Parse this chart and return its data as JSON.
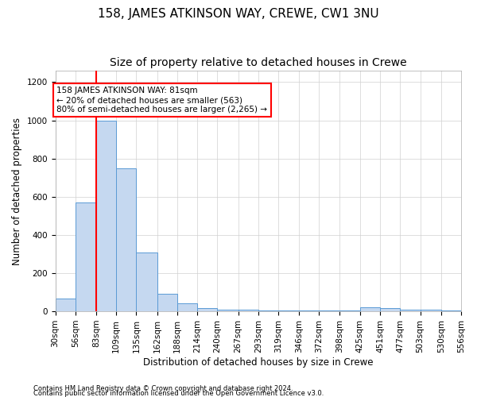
{
  "title": "158, JAMES ATKINSON WAY, CREWE, CW1 3NU",
  "subtitle": "Size of property relative to detached houses in Crewe",
  "xlabel": "Distribution of detached houses by size in Crewe",
  "ylabel": "Number of detached properties",
  "bin_edges": [
    30,
    56,
    83,
    109,
    135,
    162,
    188,
    214,
    240,
    267,
    293,
    319,
    346,
    372,
    398,
    425,
    451,
    477,
    503,
    530,
    556
  ],
  "bar_heights": [
    65,
    570,
    1000,
    750,
    310,
    90,
    40,
    15,
    10,
    8,
    6,
    5,
    4,
    3,
    3,
    20,
    15,
    10,
    8,
    6
  ],
  "bar_color": "#c5d8f0",
  "bar_edge_color": "#5b9bd5",
  "red_line_x": 83,
  "ylim": [
    0,
    1260
  ],
  "yticks": [
    0,
    200,
    400,
    600,
    800,
    1000,
    1200
  ],
  "annotation_title": "158 JAMES ATKINSON WAY: 81sqm",
  "annotation_line1": "← 20% of detached houses are smaller (563)",
  "annotation_line2": "80% of semi-detached houses are larger (2,265) →",
  "footer_line1": "Contains HM Land Registry data © Crown copyright and database right 2024.",
  "footer_line2": "Contains public sector information licensed under the Open Government Licence v3.0.",
  "title_fontsize": 11,
  "subtitle_fontsize": 10,
  "tick_label_size": 7.5,
  "axis_label_size": 8.5,
  "annotation_fontsize": 7.5,
  "footer_fontsize": 6,
  "background_color": "#ffffff",
  "grid_color": "#d0d0d0"
}
